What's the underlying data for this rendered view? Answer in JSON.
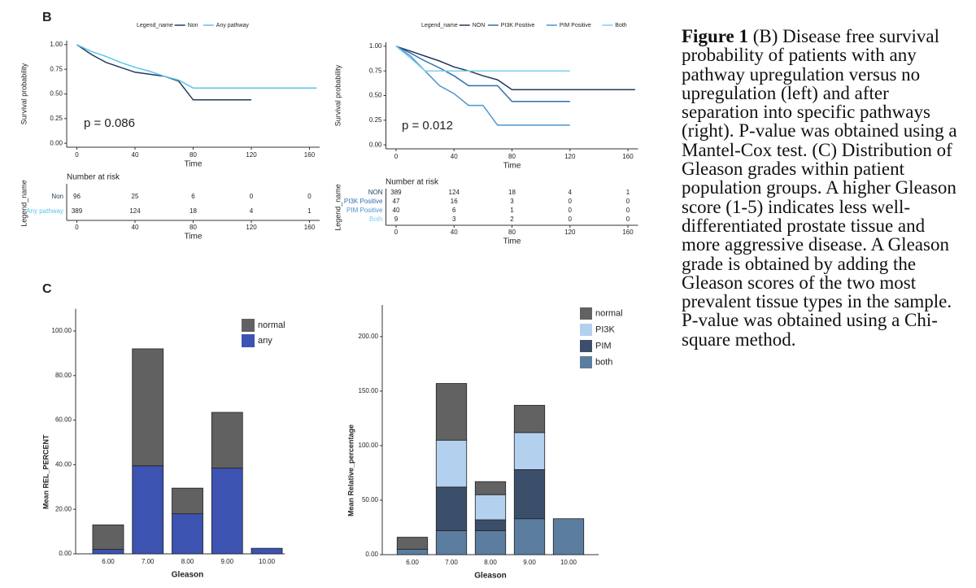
{
  "panel_labels": [
    "B",
    "C"
  ],
  "caption": {
    "label": "Figure 1",
    "text": "(B) Disease free survival probability of patients with any pathway upregulation versus no upregulation (left) and after separation into specific pathways (right). P-value was obtained using a Mantel-Cox test. (C) Distribution of Gleason grades within patient population groups. A higher Gleason score (1-5) indicates less well-differentiated prostate tissue and more aggressive disease. A Gleason grade is obtained by adding the Gleason scores of the two most prevalent tissue types in the sample. P-value was obtained using a Chi-square method."
  },
  "chart_data": [
    {
      "type": "line",
      "legend_title": "Legend_name",
      "legend": "top",
      "x": [
        0,
        10,
        20,
        30,
        40,
        50,
        60,
        70,
        80,
        90,
        100,
        110,
        120,
        140,
        165
      ],
      "series": [
        {
          "name": "Non",
          "color": "#1f3b5c",
          "values": [
            1,
            0.9,
            0.82,
            0.77,
            0.72,
            0.7,
            0.68,
            0.63,
            0.44,
            0.44,
            0.44,
            0.44,
            0.44,
            null,
            null
          ]
        },
        {
          "name": "Any pathway",
          "color": "#5cc3ec",
          "values": [
            1,
            0.93,
            0.88,
            0.82,
            0.77,
            0.73,
            0.68,
            0.64,
            0.56,
            0.56,
            0.56,
            0.56,
            0.56,
            0.56,
            0.56
          ]
        }
      ],
      "xlim": [
        -7,
        167
      ],
      "xticks": [
        0,
        40,
        80,
        120,
        160
      ],
      "ylim": [
        -0.04,
        1.04
      ],
      "yticks": [
        {
          "value": 0,
          "label": "0.00"
        },
        {
          "value": 0.25,
          "label": "0.25"
        },
        {
          "value": 0.5,
          "label": "0.50"
        },
        {
          "value": 0.75,
          "label": "0.75"
        },
        {
          "value": 1,
          "label": "1.00"
        }
      ],
      "xlabel": "Time",
      "ylabel": "Survival probability",
      "annotation": "p = 0.086",
      "risk_table": {
        "title": "Number at risk",
        "ylabel": "Legend_name",
        "xlabel": "Time",
        "xticks": [
          0,
          40,
          80,
          120,
          160
        ],
        "rows": [
          {
            "name": "Non",
            "color": "#1f3b5c",
            "values": [
              96,
              25,
              6,
              0,
              0
            ]
          },
          {
            "name": "Any pathway",
            "color": "#5cc3ec",
            "values": [
              389,
              124,
              18,
              4,
              1
            ]
          }
        ]
      }
    },
    {
      "type": "line",
      "legend_title": "Legend_name",
      "legend": "top",
      "x": [
        0,
        10,
        20,
        30,
        40,
        50,
        60,
        70,
        80,
        90,
        100,
        110,
        120,
        140,
        165
      ],
      "series": [
        {
          "name": "NON",
          "color": "#1f3b5c",
          "values": [
            1,
            0.95,
            0.9,
            0.85,
            0.79,
            0.75,
            0.7,
            0.66,
            0.56,
            0.56,
            0.56,
            0.56,
            0.56,
            0.56,
            0.56
          ]
        },
        {
          "name": "PI3K Positive",
          "color": "#2f6fb0",
          "values": [
            1,
            0.93,
            0.85,
            0.78,
            0.7,
            0.6,
            0.6,
            0.6,
            0.44,
            0.44,
            0.44,
            0.44,
            0.44,
            null,
            null
          ]
        },
        {
          "name": "PIM Positive",
          "color": "#4a95cf",
          "values": [
            1,
            0.9,
            0.75,
            0.6,
            0.52,
            0.4,
            0.4,
            0.2,
            0.2,
            0.2,
            0.2,
            0.2,
            0.2,
            null,
            null
          ]
        },
        {
          "name": "Both",
          "color": "#7fcdec",
          "values": [
            1,
            0.88,
            0.75,
            0.75,
            0.75,
            0.75,
            0.75,
            0.75,
            0.75,
            0.75,
            0.75,
            0.75,
            0.75,
            null,
            null
          ]
        }
      ],
      "xlim": [
        -7,
        167
      ],
      "xticks": [
        0,
        40,
        80,
        120,
        160
      ],
      "ylim": [
        -0.04,
        1.04
      ],
      "yticks": [
        {
          "value": 0,
          "label": "0.00"
        },
        {
          "value": 0.25,
          "label": "0.25"
        },
        {
          "value": 0.5,
          "label": "0.50"
        },
        {
          "value": 0.75,
          "label": "0.75"
        },
        {
          "value": 1,
          "label": "1.00"
        }
      ],
      "xlabel": "Time",
      "ylabel": "Survival probability",
      "annotation": "p = 0.012",
      "risk_table": {
        "title": "Number at risk",
        "ylabel": "Legend_name",
        "xlabel": "Time",
        "xticks": [
          0,
          40,
          80,
          120,
          160
        ],
        "rows": [
          {
            "name": "NON",
            "color": "#1f3b5c",
            "values": [
              389,
              124,
              18,
              4,
              1
            ]
          },
          {
            "name": "PI3K Positive",
            "color": "#2f6fb0",
            "values": [
              47,
              16,
              3,
              0,
              0
            ]
          },
          {
            "name": "PIM Positive",
            "color": "#4a95cf",
            "values": [
              40,
              6,
              1,
              0,
              0
            ]
          },
          {
            "name": "Both",
            "color": "#7fcdec",
            "values": [
              9,
              3,
              2,
              0,
              0
            ]
          }
        ]
      }
    },
    {
      "type": "bar",
      "stacked": true,
      "legend": "top-right",
      "categories": [
        "6.00",
        "7.00",
        "8.00",
        "9.00",
        "10.00"
      ],
      "series": [
        {
          "name": "any",
          "color": "#3c53b1",
          "values": [
            2,
            39.5,
            18,
            38.5,
            2.5
          ]
        },
        {
          "name": "normal",
          "color": "#616161",
          "values": [
            11,
            52.5,
            11.5,
            25,
            0
          ]
        }
      ],
      "legend_order": [
        "normal",
        "any"
      ],
      "ylim": [
        0,
        110
      ],
      "yticks": [
        {
          "value": 0,
          "label": "0.00"
        },
        {
          "value": 20,
          "label": "20.00"
        },
        {
          "value": 40,
          "label": "40.00"
        },
        {
          "value": 60,
          "label": "60.00"
        },
        {
          "value": 80,
          "label": "80.00"
        },
        {
          "value": 100,
          "label": "100.00"
        }
      ],
      "xlabel": "Gleason",
      "ylabel": "Mean REL_PERCENT"
    },
    {
      "type": "bar",
      "stacked": true,
      "legend": "top-right",
      "categories": [
        "6.00",
        "7.00",
        "8.00",
        "9.00",
        "10.00"
      ],
      "series": [
        {
          "name": "both",
          "color": "#5b7d9f",
          "values": [
            5,
            22,
            22,
            33,
            33
          ]
        },
        {
          "name": "PIM",
          "color": "#3c4f6a",
          "values": [
            0,
            40,
            10,
            45,
            0
          ]
        },
        {
          "name": "PI3K",
          "color": "#b3d1ef",
          "values": [
            0,
            43,
            23,
            34,
            0
          ]
        },
        {
          "name": "normal",
          "color": "#626262",
          "values": [
            11,
            52,
            12,
            25,
            0
          ]
        }
      ],
      "legend_order": [
        "normal",
        "PI3K",
        "PIM",
        "both"
      ],
      "ylim": [
        0,
        229
      ],
      "yticks": [
        {
          "value": 0,
          "label": "0.00"
        },
        {
          "value": 50,
          "label": "50.00"
        },
        {
          "value": 100,
          "label": "100.00"
        },
        {
          "value": 150,
          "label": "150.00"
        },
        {
          "value": 200,
          "label": "200.00"
        }
      ],
      "xlabel": "Gleason",
      "ylabel": "Mean Relative_percentage"
    }
  ]
}
